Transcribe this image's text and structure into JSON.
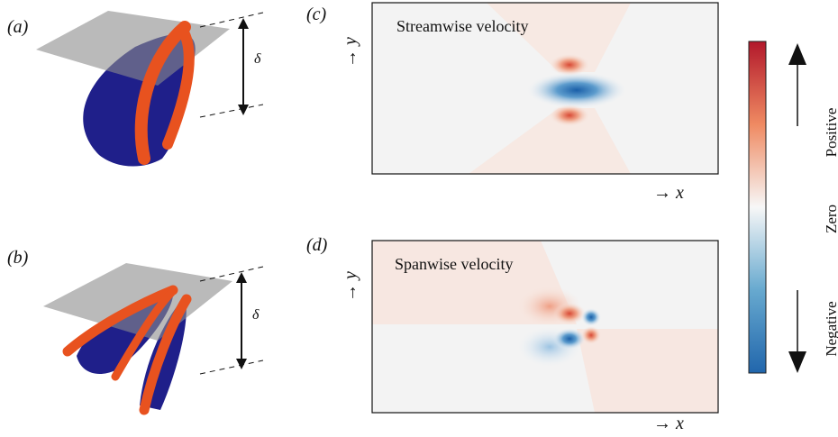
{
  "panels": [
    {
      "label": "(a)",
      "height": "δ"
    },
    {
      "label": "(b)",
      "height": "δ"
    },
    {
      "label": "(c)",
      "title": "Streamwise velocity",
      "y_label": "→ y",
      "x_label": "→ x"
    },
    {
      "label": "(d)",
      "title": "Spanwise velocity",
      "y_label": "→ y",
      "x_label": "→ x"
    }
  ],
  "colorbar": {
    "top": "Positive",
    "middle": "Zero",
    "bottom": "Negative"
  }
}
